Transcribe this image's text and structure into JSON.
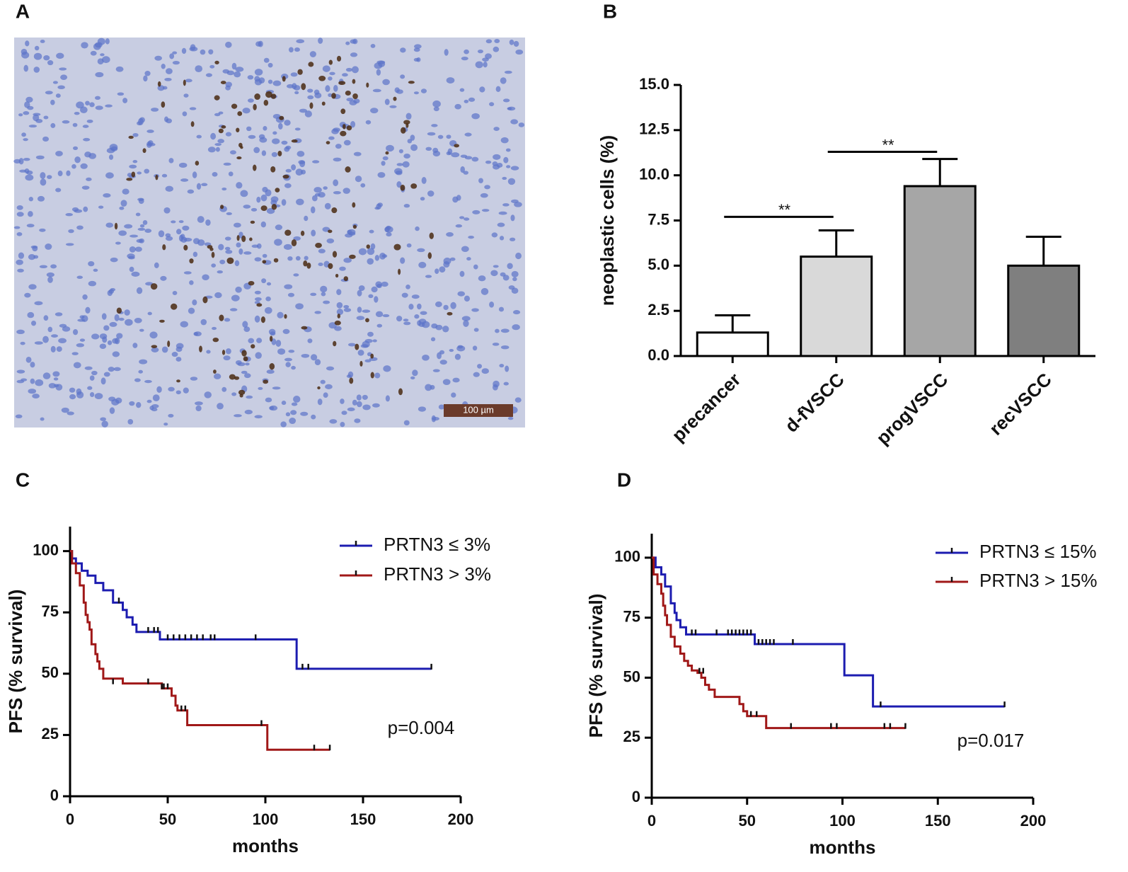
{
  "panel_labels": [
    "A",
    "B",
    "C",
    "D"
  ],
  "image": {
    "scale_bar": "100 µm"
  },
  "chart_data": [
    {
      "type": "bar",
      "ylabel": "neoplastic cells (%)",
      "categories": [
        "precancer",
        "d-fVSCC",
        "progVSCC",
        "recVSCC"
      ],
      "values": [
        1.3,
        5.5,
        9.4,
        5.0
      ],
      "errors": [
        0.95,
        1.45,
        1.5,
        1.6
      ],
      "colors": [
        "#ffffff",
        "#d9d9d9",
        "#a6a6a6",
        "#7f7f7f"
      ],
      "ylim": [
        0,
        15
      ],
      "yticks": [
        {
          "value": 0,
          "label": "0.0"
        },
        {
          "value": 2.5,
          "label": "2.5"
        },
        {
          "value": 5,
          "label": "5.0"
        },
        {
          "value": 7.5,
          "label": "7.5"
        },
        {
          "value": 10,
          "label": "10.0"
        },
        {
          "value": 12.5,
          "label": "12.5"
        },
        {
          "value": 15,
          "label": "15.0"
        }
      ],
      "significance": [
        {
          "label": "**",
          "between": [
            "precancer",
            "d-fVSCC"
          ],
          "y": 7.7
        },
        {
          "label": "**",
          "between": [
            "d-fVSCC",
            "progVSCC"
          ],
          "y": 11.3
        }
      ]
    },
    {
      "type": "km",
      "xlabel": "months",
      "ylabel": "PFS (% survival)",
      "annotation": "p=0.004",
      "legend": "upper right",
      "xlim": [
        0,
        200
      ],
      "xticks": [
        0,
        50,
        100,
        150,
        200
      ],
      "ylim": [
        0,
        110
      ],
      "yticks": [
        0,
        25,
        50,
        75,
        100
      ],
      "series": [
        {
          "name": "PRTN3 ≤ 3%",
          "color": "#1c1cb0",
          "x": [
            0,
            1,
            3,
            6,
            9,
            13,
            17,
            22,
            27,
            29,
            32,
            34,
            46,
            116,
            185
          ],
          "values": [
            100,
            97,
            95,
            92,
            90,
            87,
            84,
            79,
            76,
            73,
            70,
            67,
            64,
            52,
            52
          ],
          "censored_x": [
            25,
            40,
            43,
            45,
            50,
            53,
            56,
            59,
            62,
            65,
            68,
            72,
            74,
            95,
            119,
            122,
            185
          ],
          "censored_values": [
            79,
            67,
            67,
            67,
            64,
            64,
            64,
            64,
            64,
            64,
            64,
            64,
            64,
            64,
            52,
            52,
            52
          ]
        },
        {
          "name": "PRTN3 > 3%",
          "color": "#a01818",
          "x": [
            0,
            1,
            3,
            5,
            7,
            8,
            9,
            10,
            11,
            13,
            14,
            15,
            17,
            27,
            47,
            52,
            54,
            55,
            60,
            101,
            133
          ],
          "values": [
            100,
            95,
            91,
            86,
            79,
            74,
            71,
            68,
            62,
            58,
            55,
            52,
            48,
            46,
            44,
            41,
            37,
            35,
            29,
            19,
            19
          ],
          "censored_x": [
            22,
            40,
            47,
            48,
            50,
            57,
            59,
            98,
            125,
            133
          ],
          "censored_values": [
            46,
            46,
            44,
            44,
            44,
            35,
            35,
            29,
            19,
            19
          ]
        }
      ]
    },
    {
      "type": "km",
      "xlabel": "months",
      "ylabel": "PFS (% survival)",
      "annotation": "p=0.017",
      "legend": "upper right",
      "xlim": [
        0,
        200
      ],
      "xticks": [
        0,
        50,
        100,
        150,
        200
      ],
      "ylim": [
        0,
        110
      ],
      "yticks": [
        0,
        25,
        50,
        75,
        100
      ],
      "series": [
        {
          "name": "PRTN3 ≤ 15%",
          "color": "#1c1cb0",
          "x": [
            0,
            2,
            5,
            7,
            10,
            12,
            13,
            15,
            18,
            54,
            101,
            116,
            185
          ],
          "values": [
            100,
            96,
            93,
            88,
            81,
            77,
            74,
            71,
            68,
            64,
            51,
            38,
            38
          ],
          "censored_x": [
            21,
            23,
            34,
            40,
            42,
            44,
            46,
            48,
            50,
            52,
            56,
            58,
            60,
            62,
            64,
            74,
            120,
            185
          ],
          "censored_values": [
            68,
            68,
            68,
            68,
            68,
            68,
            68,
            68,
            68,
            68,
            64,
            64,
            64,
            64,
            64,
            64,
            38,
            38
          ]
        },
        {
          "name": "PRTN3 > 15%",
          "color": "#a01818",
          "x": [
            0,
            1,
            3,
            5,
            6,
            7,
            8,
            10,
            12,
            15,
            17,
            19,
            21,
            24,
            26,
            28,
            30,
            33,
            46,
            48,
            50,
            60,
            133
          ],
          "values": [
            100,
            93,
            89,
            85,
            80,
            76,
            72,
            67,
            63,
            60,
            57,
            55,
            53,
            52,
            50,
            47,
            45,
            42,
            39,
            36,
            34,
            29,
            29
          ],
          "censored_x": [
            25,
            27,
            52,
            55,
            73,
            94,
            97,
            122,
            125,
            133
          ],
          "censored_values": [
            52,
            52,
            34,
            34,
            29,
            29,
            29,
            29,
            29,
            29
          ]
        }
      ]
    }
  ]
}
